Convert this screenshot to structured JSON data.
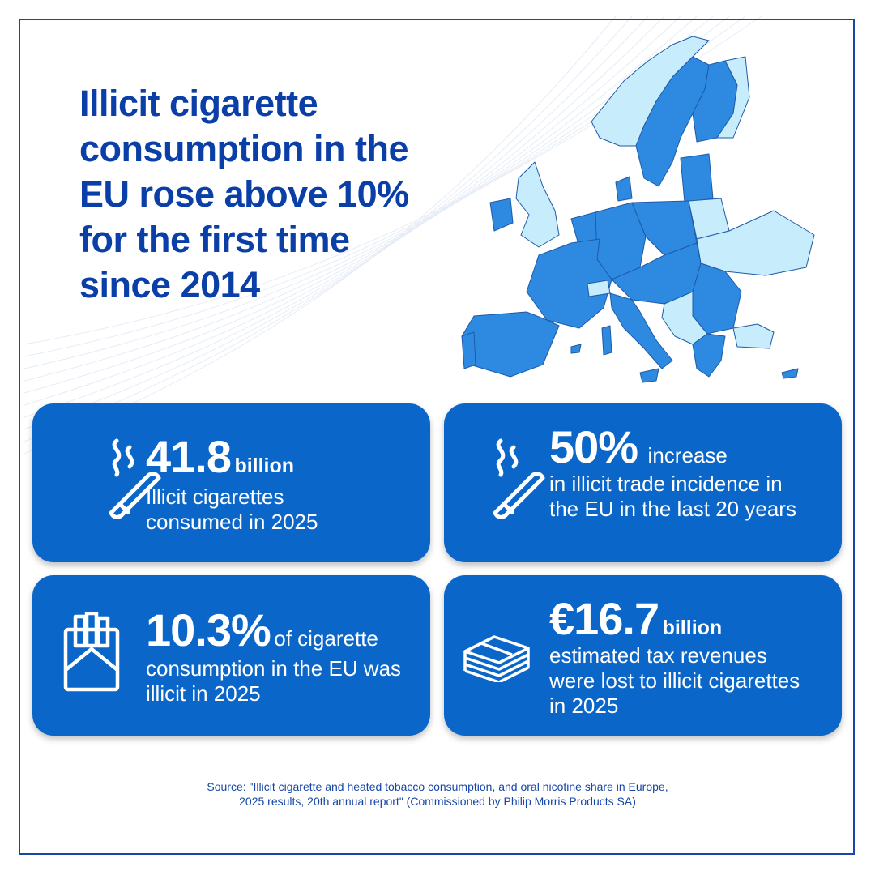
{
  "headline": "Illicit cigarette consumption in the EU rose above 10% for the first time since 2014",
  "cards": [
    {
      "value": "41.8",
      "unit": "billion",
      "description": "Illicit cigarettes consumed in 2025",
      "icon": "cigarette-icon"
    },
    {
      "value": "50%",
      "unit": "increase",
      "description": "in illicit trade incidence in the EU in the last 20 years",
      "icon": "cigarette-icon"
    },
    {
      "value": "10.3%",
      "unit": "of cigarette",
      "description": "consumption in the EU was illicit in 2025",
      "icon": "cigarette-pack-icon"
    },
    {
      "value": "€16.7",
      "unit": "billion",
      "description": "estimated tax revenues were lost to illicit cigarettes in 2025",
      "icon": "money-stack-icon"
    }
  ],
  "source": {
    "line1": "Source:  \"Illicit cigarette and heated tobacco consumption, and oral nicotine share in Europe,",
    "line2": "2025 results, 20th annual report\" (Commissioned by Philip Morris Products SA)"
  },
  "colors": {
    "primary": "#0b3fa8",
    "card": "#0b66c9",
    "map_eu": "#2d8ae0",
    "map_non_eu": "#c7ecfb",
    "border": "#1546a8"
  }
}
